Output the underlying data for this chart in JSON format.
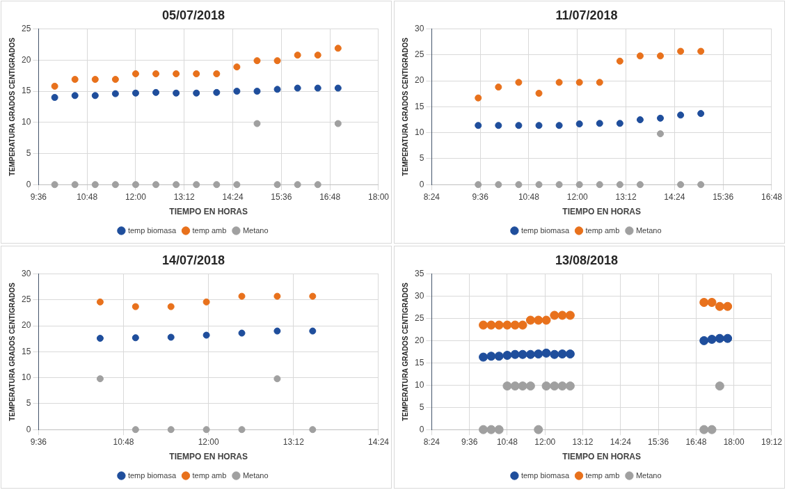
{
  "chart_data": [
    {
      "type": "scatter",
      "title": "05/07/2018",
      "xlabel": "TIEMPO EN HORAS",
      "ylabel": "TEMPERATURA GRADOS CENTIGRADOS",
      "legend": "bottom",
      "grid": true,
      "marker": "circle",
      "x": [
        10,
        10.5,
        11,
        11.5,
        12,
        12.5,
        13,
        13.5,
        14,
        14.5,
        15,
        15.5,
        16,
        16.5,
        17
      ],
      "xlim": [
        9.6,
        18
      ],
      "xticks": [
        {
          "value": 9.6,
          "label": "9:36"
        },
        {
          "value": 10.8,
          "label": "10:48"
        },
        {
          "value": 12,
          "label": "12:00"
        },
        {
          "value": 13.2,
          "label": "13:12"
        },
        {
          "value": 14.4,
          "label": "14:24"
        },
        {
          "value": 15.6,
          "label": "15:36"
        },
        {
          "value": 16.8,
          "label": "16:48"
        },
        {
          "value": 18,
          "label": "18:00"
        }
      ],
      "ylim": [
        0,
        25
      ],
      "yticks": [
        0,
        5,
        10,
        15,
        20,
        25
      ],
      "series": [
        {
          "name": "temp biomasa",
          "color": "#1f4e9c",
          "values": [
            14.0,
            14.3,
            14.3,
            14.6,
            14.7,
            14.8,
            14.7,
            14.7,
            14.8,
            15.0,
            15.0,
            15.3,
            15.5,
            15.5,
            15.5
          ]
        },
        {
          "name": "temp amb",
          "color": "#e8711c",
          "values": [
            15.8,
            16.9,
            16.9,
            16.9,
            17.8,
            17.8,
            17.8,
            17.8,
            17.8,
            18.9,
            19.9,
            19.9,
            20.8,
            20.8,
            21.9
          ]
        },
        {
          "name": "Metano",
          "color": "#a0a0a0",
          "values": [
            0,
            0,
            0,
            0,
            0,
            0,
            0,
            0,
            0,
            0,
            9.8,
            0,
            0,
            0,
            9.8
          ]
        }
      ]
    },
    {
      "type": "scatter",
      "title": "11/07/2018",
      "xlabel": "TIEMPO EN HORAS",
      "ylabel": "TEMPERATURA GRADOS CENTIGRADOS",
      "legend": "bottom",
      "grid": true,
      "marker": "circle",
      "x": [
        9.55,
        10.05,
        10.55,
        11.05,
        11.55,
        12.05,
        12.55,
        13.05,
        13.55,
        14.05,
        14.55,
        15.05
      ],
      "xlim": [
        8.4,
        16.8
      ],
      "xticks": [
        {
          "value": 8.4,
          "label": "8:24"
        },
        {
          "value": 9.6,
          "label": "9:36"
        },
        {
          "value": 10.8,
          "label": "10:48"
        },
        {
          "value": 12,
          "label": "12:00"
        },
        {
          "value": 13.2,
          "label": "13:12"
        },
        {
          "value": 14.4,
          "label": "14:24"
        },
        {
          "value": 15.6,
          "label": "15:36"
        },
        {
          "value": 16.8,
          "label": "16:48"
        }
      ],
      "ylim": [
        0,
        30
      ],
      "yticks": [
        0,
        5,
        10,
        15,
        20,
        25,
        30
      ],
      "series": [
        {
          "name": "temp biomasa",
          "color": "#1f4e9c",
          "values": [
            11.4,
            11.4,
            11.4,
            11.4,
            11.4,
            11.7,
            11.8,
            11.8,
            12.5,
            12.8,
            13.4,
            13.7
          ]
        },
        {
          "name": "temp amb",
          "color": "#e8711c",
          "values": [
            16.7,
            18.8,
            19.7,
            17.6,
            19.7,
            19.7,
            19.7,
            23.8,
            24.8,
            24.8,
            25.7,
            25.7
          ]
        },
        {
          "name": "Metano",
          "color": "#a0a0a0",
          "values": [
            0,
            0,
            0,
            0,
            0,
            0,
            0,
            0,
            0,
            9.8,
            0,
            0
          ]
        }
      ]
    },
    {
      "type": "scatter",
      "title": "14/07/2018",
      "xlabel": "TIEMPO EN HORAS",
      "ylabel": "TEMPERATURA GRADOS CENTIGRADOS",
      "legend": "bottom",
      "grid": true,
      "marker": "circle",
      "x": [
        10.47,
        10.97,
        11.47,
        11.97,
        12.47,
        12.97,
        13.47
      ],
      "xlim": [
        9.6,
        14.4
      ],
      "xticks": [
        {
          "value": 9.6,
          "label": "9:36"
        },
        {
          "value": 10.8,
          "label": "10:48"
        },
        {
          "value": 12,
          "label": "12:00"
        },
        {
          "value": 13.2,
          "label": "13:12"
        },
        {
          "value": 14.4,
          "label": "14:24"
        }
      ],
      "ylim": [
        0,
        30
      ],
      "yticks": [
        0,
        5,
        10,
        15,
        20,
        25,
        30
      ],
      "series": [
        {
          "name": "temp biomasa",
          "color": "#1f4e9c",
          "values": [
            17.6,
            17.7,
            17.8,
            18.2,
            18.6,
            19.0,
            19.0
          ]
        },
        {
          "name": "temp amb",
          "color": "#e8711c",
          "values": [
            24.6,
            23.7,
            23.7,
            24.6,
            25.7,
            25.7,
            25.7
          ]
        },
        {
          "name": "Metano",
          "color": "#a0a0a0",
          "values": [
            9.8,
            0,
            0,
            0,
            0,
            9.8,
            0
          ]
        }
      ]
    },
    {
      "type": "scatter",
      "title": "13/08/2018",
      "xlabel": "TIEMPO EN HORAS",
      "ylabel": "TEMPERATURA GRADOS CENTIGRADOS",
      "legend": "bottom",
      "grid": true,
      "marker": "circle",
      "x": [
        10.04,
        10.29,
        10.54,
        10.8,
        11.05,
        11.29,
        11.54,
        11.79,
        12.04,
        12.3,
        12.55,
        12.8,
        17.05,
        17.3,
        17.55,
        17.8
      ],
      "xlim": [
        8.4,
        19.2
      ],
      "xticks": [
        {
          "value": 8.4,
          "label": "8:24"
        },
        {
          "value": 9.6,
          "label": "9:36"
        },
        {
          "value": 10.8,
          "label": "10:48"
        },
        {
          "value": 12,
          "label": "12:00"
        },
        {
          "value": 13.2,
          "label": "13:12"
        },
        {
          "value": 14.4,
          "label": "14:24"
        },
        {
          "value": 15.6,
          "label": "15:36"
        },
        {
          "value": 16.8,
          "label": "16:48"
        },
        {
          "value": 18,
          "label": "18:00"
        },
        {
          "value": 19.2,
          "label": "19:12"
        }
      ],
      "ylim": [
        0,
        35
      ],
      "yticks": [
        0,
        5,
        10,
        15,
        20,
        25,
        30,
        35
      ],
      "series": [
        {
          "name": "temp biomasa",
          "color": "#1f4e9c",
          "values": [
            16.3,
            16.5,
            16.5,
            16.7,
            16.9,
            16.9,
            16.9,
            17.0,
            17.2,
            16.9,
            17.0,
            17.0,
            20.0,
            20.3,
            20.5,
            20.5
          ]
        },
        {
          "name": "temp amb",
          "color": "#e8711c",
          "values": [
            23.5,
            23.5,
            23.5,
            23.5,
            23.5,
            23.5,
            24.6,
            24.6,
            24.6,
            25.7,
            25.7,
            25.7,
            28.6,
            28.6,
            27.7,
            27.7
          ]
        },
        {
          "name": "Metano",
          "color": "#a0a0a0",
          "values": [
            0,
            0,
            0,
            9.8,
            9.8,
            9.8,
            9.8,
            0,
            9.8,
            9.8,
            9.8,
            9.8,
            0,
            0,
            9.8,
            null
          ]
        }
      ]
    }
  ]
}
